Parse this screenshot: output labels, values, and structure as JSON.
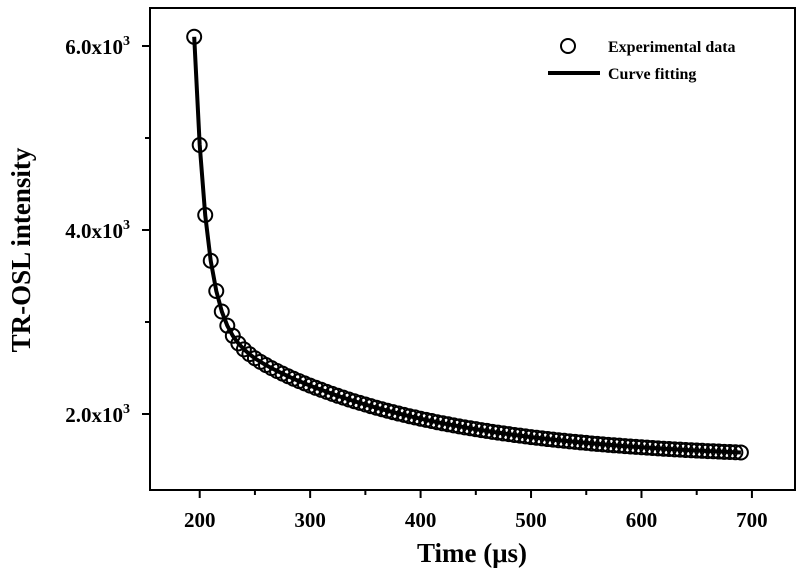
{
  "chart_data": {
    "type": "scatter",
    "title": "",
    "xlabel": "Time (μs)",
    "ylabel": "TR-OSL intensity",
    "xlim": [
      155,
      739
    ],
    "ylim": [
      1174,
      6413
    ],
    "grid": false,
    "legend_position": "top-right",
    "x_ticks": [
      200,
      300,
      400,
      500,
      600,
      700
    ],
    "x_tick_labels": [
      "200",
      "300",
      "400",
      "500",
      "600",
      "700"
    ],
    "x_minor_ticks": [
      250,
      350,
      450,
      550,
      650
    ],
    "y_ticks": [
      2000,
      4000,
      6000
    ],
    "y_tick_labels": [
      {
        "mantissa": "2.0x10",
        "exponent": "3"
      },
      {
        "mantissa": "4.0x10",
        "exponent": "3"
      },
      {
        "mantissa": "6.0x10",
        "exponent": "3"
      }
    ],
    "y_minor_ticks": [
      1000,
      3000,
      5000
    ],
    "series": [
      {
        "name": "Experimental data",
        "style": "open-circle-markers",
        "color": "#000000",
        "x": [
          195,
          200,
          205,
          210,
          215,
          220,
          225,
          230,
          235,
          240,
          245,
          250,
          255,
          260,
          265,
          270,
          275,
          280,
          285,
          290,
          295,
          300,
          305,
          310,
          315,
          320,
          325,
          330,
          335,
          340,
          345,
          350,
          355,
          360,
          365,
          370,
          375,
          380,
          385,
          390,
          395,
          400,
          405,
          410,
          415,
          420,
          425,
          430,
          435,
          440,
          445,
          450,
          455,
          460,
          465,
          470,
          475,
          480,
          485,
          490,
          495,
          500,
          505,
          510,
          515,
          520,
          525,
          530,
          535,
          540,
          545,
          550,
          555,
          560,
          565,
          570,
          575,
          580,
          585,
          590,
          595,
          600,
          605,
          610,
          615,
          620,
          625,
          630,
          635,
          640,
          645,
          650,
          655,
          660,
          665,
          670,
          675,
          680,
          685,
          690
        ],
        "y": [
          6100,
          4924,
          4163,
          3666,
          3337,
          3114,
          2960,
          2850,
          2768,
          2703,
          2651,
          2606,
          2567,
          2532,
          2499,
          2468,
          2439,
          2411,
          2383,
          2358,
          2333,
          2309,
          2285,
          2263,
          2241,
          2219,
          2198,
          2178,
          2158,
          2139,
          2121,
          2103,
          2085,
          2068,
          2052,
          2036,
          2020,
          2005,
          1991,
          1976,
          1963,
          1949,
          1936,
          1924,
          1911,
          1899,
          1888,
          1877,
          1866,
          1855,
          1845,
          1835,
          1825,
          1816,
          1806,
          1798,
          1789,
          1781,
          1772,
          1765,
          1757,
          1749,
          1742,
          1735,
          1728,
          1722,
          1715,
          1709,
          1703,
          1697,
          1691,
          1686,
          1680,
          1675,
          1670,
          1665,
          1660,
          1656,
          1651,
          1647,
          1643,
          1639,
          1635,
          1631,
          1627,
          1623,
          1620,
          1616,
          1613,
          1609,
          1606,
          1603,
          1600,
          1597,
          1595,
          1592,
          1589,
          1587,
          1584,
          1582
        ]
      },
      {
        "name": "Curve fitting",
        "style": "solid-line",
        "color": "#000000",
        "follows": "Experimental data"
      }
    ]
  }
}
